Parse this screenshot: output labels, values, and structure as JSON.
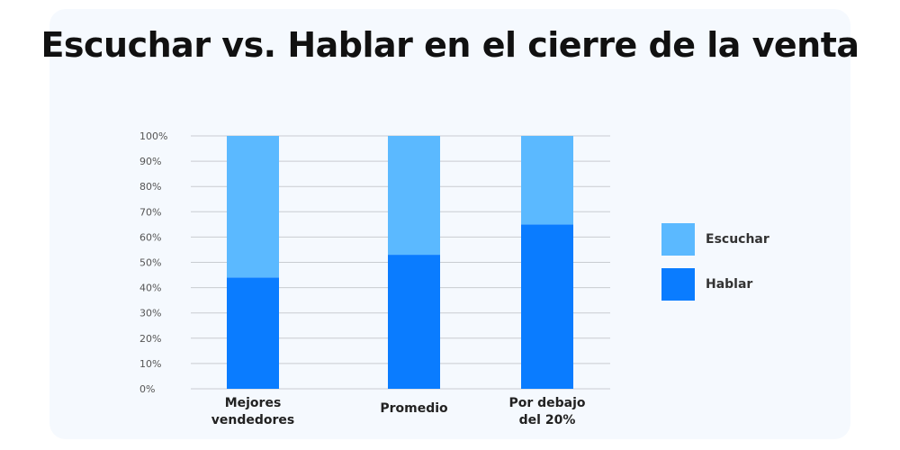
{
  "title": "Escuchar vs. Hablar en el cierre de la venta",
  "colors": {
    "escuchar": "#5bb9ff",
    "hablar": "#0a7cff",
    "card": "#f5f9fe"
  },
  "chart_data": {
    "type": "bar",
    "stacked": true,
    "categories": [
      [
        "Mejores",
        "vendedores"
      ],
      [
        "Promedio"
      ],
      [
        "Por debajo",
        "del 20%"
      ]
    ],
    "series": [
      {
        "name": "Hablar",
        "values": [
          44,
          53,
          65
        ]
      },
      {
        "name": "Escuchar",
        "values": [
          56,
          47,
          35
        ]
      }
    ],
    "yticks": [
      "0%",
      "10%",
      "20%",
      "30%",
      "40%",
      "50%",
      "60%",
      "70%",
      "80%",
      "90%",
      "100%"
    ],
    "ylim": [
      0,
      100
    ],
    "grid": true,
    "legend_position": "right"
  },
  "legend": [
    {
      "label": "Escuchar",
      "color_key": "escuchar"
    },
    {
      "label": "Hablar",
      "color_key": "hablar"
    }
  ]
}
